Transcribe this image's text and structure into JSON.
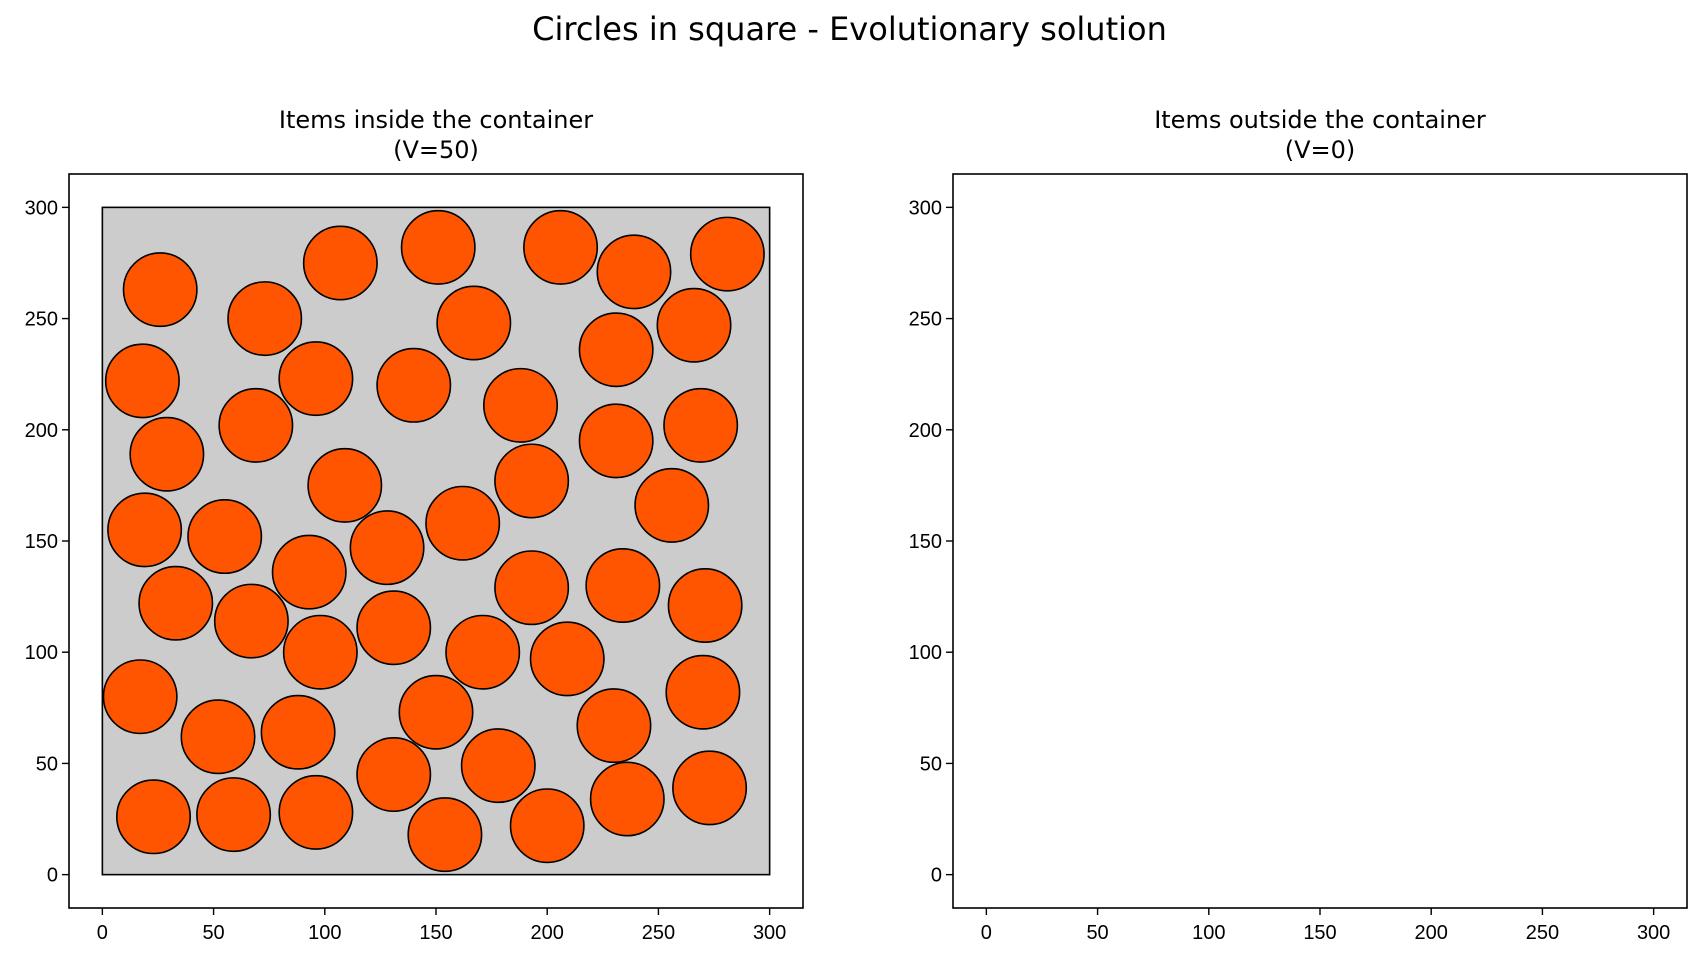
{
  "figure": {
    "suptitle": "Circles in square - Evolutionary solution"
  },
  "chart_data": [
    {
      "type": "scatter",
      "title_line1": "Items inside the container",
      "title_line2": "(V=50)",
      "xlabel": "",
      "ylabel": "",
      "xlim": [
        -15,
        315
      ],
      "ylim": [
        -15,
        315
      ],
      "xticks": [
        0,
        50,
        100,
        150,
        200,
        250,
        300
      ],
      "yticks": [
        0,
        50,
        100,
        150,
        200,
        250,
        300
      ],
      "grid": false,
      "container": {
        "shape": "square",
        "x0": 0,
        "y0": 0,
        "size": 300,
        "color": "#cccccc"
      },
      "circle_radius": 16.5,
      "circle_color": "#ff5500",
      "circles": [
        [
          26,
          263
        ],
        [
          107,
          275
        ],
        [
          151,
          282
        ],
        [
          206,
          282
        ],
        [
          239,
          271
        ],
        [
          281,
          279
        ],
        [
          73,
          250
        ],
        [
          167,
          248
        ],
        [
          231,
          236
        ],
        [
          266,
          247
        ],
        [
          18,
          222
        ],
        [
          96,
          223
        ],
        [
          140,
          220
        ],
        [
          188,
          211
        ],
        [
          69,
          202
        ],
        [
          29,
          189
        ],
        [
          231,
          195
        ],
        [
          269,
          202
        ],
        [
          109,
          175
        ],
        [
          193,
          177
        ],
        [
          256,
          166
        ],
        [
          19,
          155
        ],
        [
          55,
          152
        ],
        [
          162,
          158
        ],
        [
          128,
          147
        ],
        [
          93,
          136
        ],
        [
          33,
          122
        ],
        [
          67,
          114
        ],
        [
          193,
          129
        ],
        [
          234,
          130
        ],
        [
          271,
          121
        ],
        [
          98,
          100
        ],
        [
          131,
          111
        ],
        [
          171,
          100
        ],
        [
          209,
          97
        ],
        [
          17,
          80
        ],
        [
          150,
          73
        ],
        [
          230,
          67
        ],
        [
          270,
          82
        ],
        [
          52,
          62
        ],
        [
          88,
          64
        ],
        [
          131,
          45
        ],
        [
          178,
          49
        ],
        [
          23,
          26
        ],
        [
          59,
          27
        ],
        [
          96,
          28
        ],
        [
          154,
          18
        ],
        [
          200,
          22
        ],
        [
          236,
          34
        ],
        [
          273,
          39
        ]
      ]
    },
    {
      "type": "scatter",
      "title_line1": "Items outside the container",
      "title_line2": "(V=0)",
      "xlabel": "",
      "ylabel": "",
      "xlim": [
        -15,
        315
      ],
      "ylim": [
        -15,
        315
      ],
      "xticks": [
        0,
        50,
        100,
        150,
        200,
        250,
        300
      ],
      "yticks": [
        0,
        50,
        100,
        150,
        200,
        250,
        300
      ],
      "grid": false,
      "circles": []
    }
  ]
}
